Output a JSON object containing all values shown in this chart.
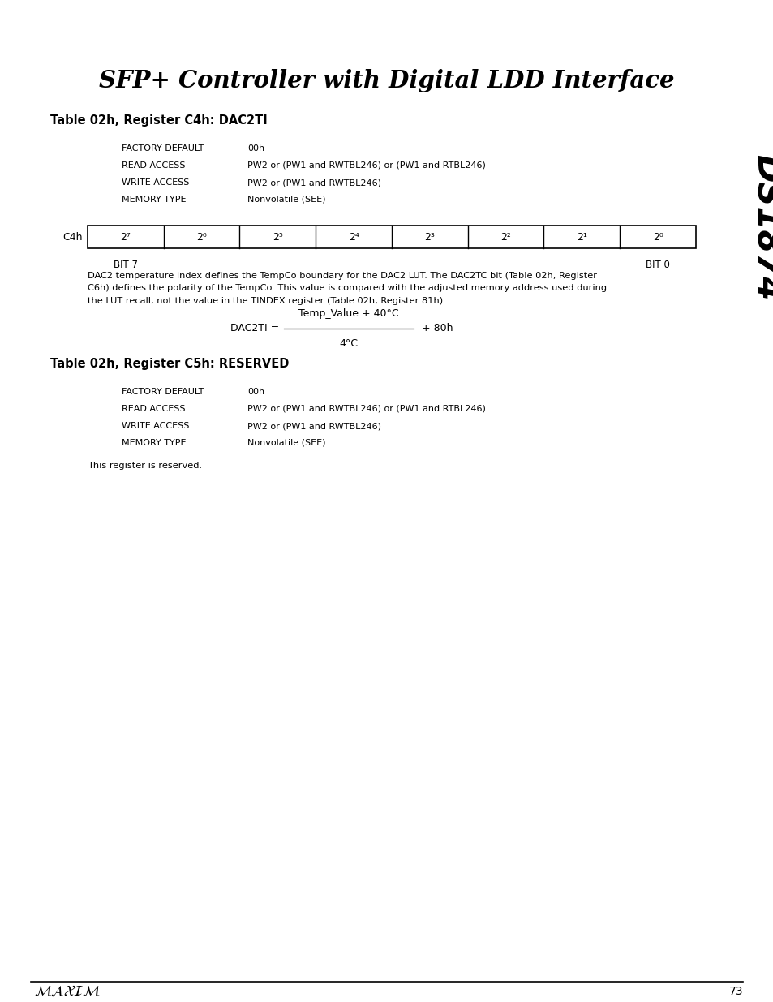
{
  "title": "SFP+ Controller with Digital LDD Interface",
  "bg_color": "#ffffff",
  "text_color": "#000000",
  "page_number": "73",
  "side_label": "DS1874",
  "section1_heading": "Table 02h, Register C4h: DAC2TI",
  "section1_fields": [
    [
      "FACTORY DEFAULT",
      "00h"
    ],
    [
      "READ ACCESS",
      "PW2 or (PW1 and RWTBL246) or (PW1 and RTBL246)"
    ],
    [
      "WRITE ACCESS",
      "PW2 or (PW1 and RWTBL246)"
    ],
    [
      "MEMORY TYPE",
      "Nonvolatile (SEE)"
    ]
  ],
  "register_label": "C4h",
  "register_bits": [
    "2⁷",
    "2⁶",
    "2⁵",
    "2⁴",
    "2³",
    "2²",
    "2¹",
    "2⁰"
  ],
  "bit7_label": "BIT 7",
  "bit0_label": "BIT 0",
  "description1_lines": [
    "DAC2 temperature index defines the TempCo boundary for the DAC2 LUT. The DAC2TC bit (Table 02h, Register",
    "C6h) defines the polarity of the TempCo. This value is compared with the adjusted memory address used during",
    "the LUT recall, not the value in the TINDEX register (Table 02h, Register 81h)."
  ],
  "formula_label": "DAC2TI =",
  "formula_numerator": "Temp_Value + 40°C",
  "formula_denominator": "4°C",
  "formula_suffix": "+ 80h",
  "section2_heading": "Table 02h, Register C5h: RESERVED",
  "section2_fields": [
    [
      "FACTORY DEFAULT",
      "00h"
    ],
    [
      "READ ACCESS",
      "PW2 or (PW1 and RWTBL246) or (PW1 and RTBL246)"
    ],
    [
      "WRITE ACCESS",
      "PW2 or (PW1 and RWTBL246)"
    ],
    [
      "MEMORY TYPE",
      "Nonvolatile (SEE)"
    ]
  ],
  "reserved_note": "This register is reserved."
}
